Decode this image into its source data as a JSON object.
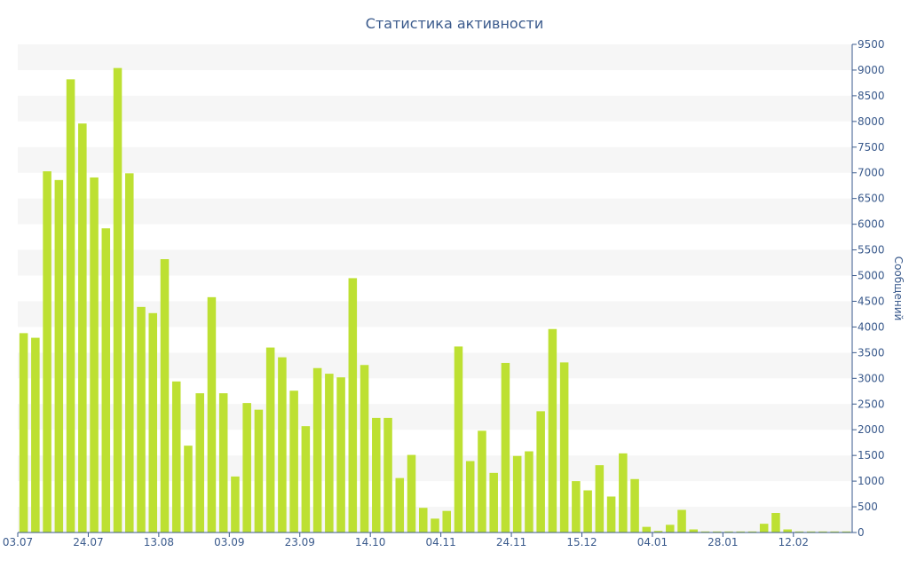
{
  "chart_data": {
    "type": "bar",
    "title": "Статистика активности",
    "ylabel": "Сообщений",
    "xlabel": "",
    "ylim": [
      0,
      9500
    ],
    "y_ticks": [
      0,
      500,
      1000,
      1500,
      2000,
      2500,
      3000,
      3500,
      4000,
      4500,
      5000,
      5500,
      6000,
      6500,
      7000,
      7500,
      8000,
      8500,
      9000,
      9500
    ],
    "x_tick_labels": [
      "03.07",
      "24.07",
      "13.08",
      "03.09",
      "23.09",
      "14.10",
      "04.11",
      "24.11",
      "15.12",
      "04.01",
      "28.01",
      "12.02"
    ],
    "x_tick_bar_index": [
      0,
      6,
      12,
      18,
      24,
      30,
      36,
      42,
      48,
      54,
      60,
      66
    ],
    "bar_color": "#bde032",
    "band_color": "#f6f6f6",
    "text_color": "#3a5a8c",
    "values": [
      3880,
      3790,
      7030,
      6860,
      8820,
      7960,
      6910,
      5920,
      9040,
      6990,
      4390,
      4270,
      5320,
      2940,
      1690,
      2710,
      4580,
      2710,
      1090,
      2520,
      2390,
      3600,
      3410,
      2760,
      2070,
      3200,
      3090,
      3020,
      4950,
      3260,
      2230,
      2230,
      1060,
      1510,
      480,
      270,
      420,
      3620,
      1390,
      1980,
      1160,
      3300,
      1490,
      1580,
      2360,
      3960,
      3310,
      1000,
      820,
      1310,
      700,
      1540,
      1040,
      110,
      30,
      150,
      440,
      60,
      20,
      20,
      20,
      20,
      20,
      170,
      380,
      60,
      20,
      20,
      20,
      20,
      20
    ]
  }
}
